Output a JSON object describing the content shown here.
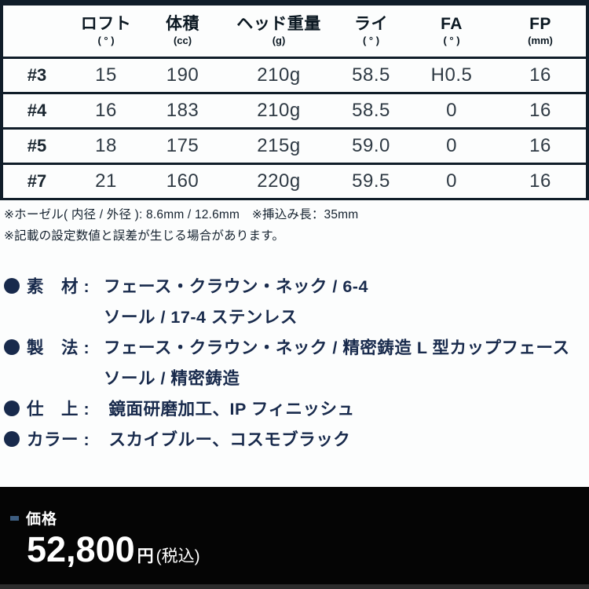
{
  "table": {
    "headers": [
      {
        "label": "",
        "unit": ""
      },
      {
        "label": "ロフト",
        "unit": "( ° )"
      },
      {
        "label": "体積",
        "unit": "(cc)"
      },
      {
        "label": "ヘッド重量",
        "unit": "(g)"
      },
      {
        "label": "ライ",
        "unit": "( ° )"
      },
      {
        "label": "FA",
        "unit": "( ° )"
      },
      {
        "label": "FP",
        "unit": "(mm)"
      }
    ],
    "rows": [
      {
        "cells": [
          "#3",
          "15",
          "190",
          "210g",
          "58.5",
          "H0.5",
          "16"
        ]
      },
      {
        "cells": [
          "#4",
          "16",
          "183",
          "210g",
          "58.5",
          "0",
          "16"
        ]
      },
      {
        "cells": [
          "#5",
          "18",
          "175",
          "215g",
          "59.0",
          "0",
          "16"
        ]
      },
      {
        "cells": [
          "#7",
          "21",
          "160",
          "220g",
          "59.5",
          "0",
          "16"
        ]
      }
    ]
  },
  "notes": [
    "※ホーゼル( 内径 / 外径 ): 8.6mm / 12.6mm　※挿込み長：35mm",
    "※記載の設定数値と誤差が生じる場合があります。"
  ],
  "specs": [
    {
      "label": "素　材 :",
      "line1": "フェース・クラウン・ネック / 6-4",
      "line2": "ソール / 17-4 ステンレス"
    },
    {
      "label": "製　法 :",
      "line1": "フェース・クラウン・ネック / 精密鋳造 L 型カップフェース",
      "line2": "ソール / 精密鋳造"
    },
    {
      "label": "仕　上 :",
      "line1": " 鏡面研磨加工、IP フィニッシュ"
    },
    {
      "label": "カラー :",
      "line1": " スカイブルー、コスモブラック"
    }
  ],
  "price": {
    "label": "価格",
    "amount": "52,800",
    "currency": "円",
    "tax_note": "(税込)"
  },
  "colors": {
    "table_line": "#101d29",
    "navy_text": "#182a4c",
    "price_bar": "#050505",
    "accent_dash": "#3d5d80"
  }
}
